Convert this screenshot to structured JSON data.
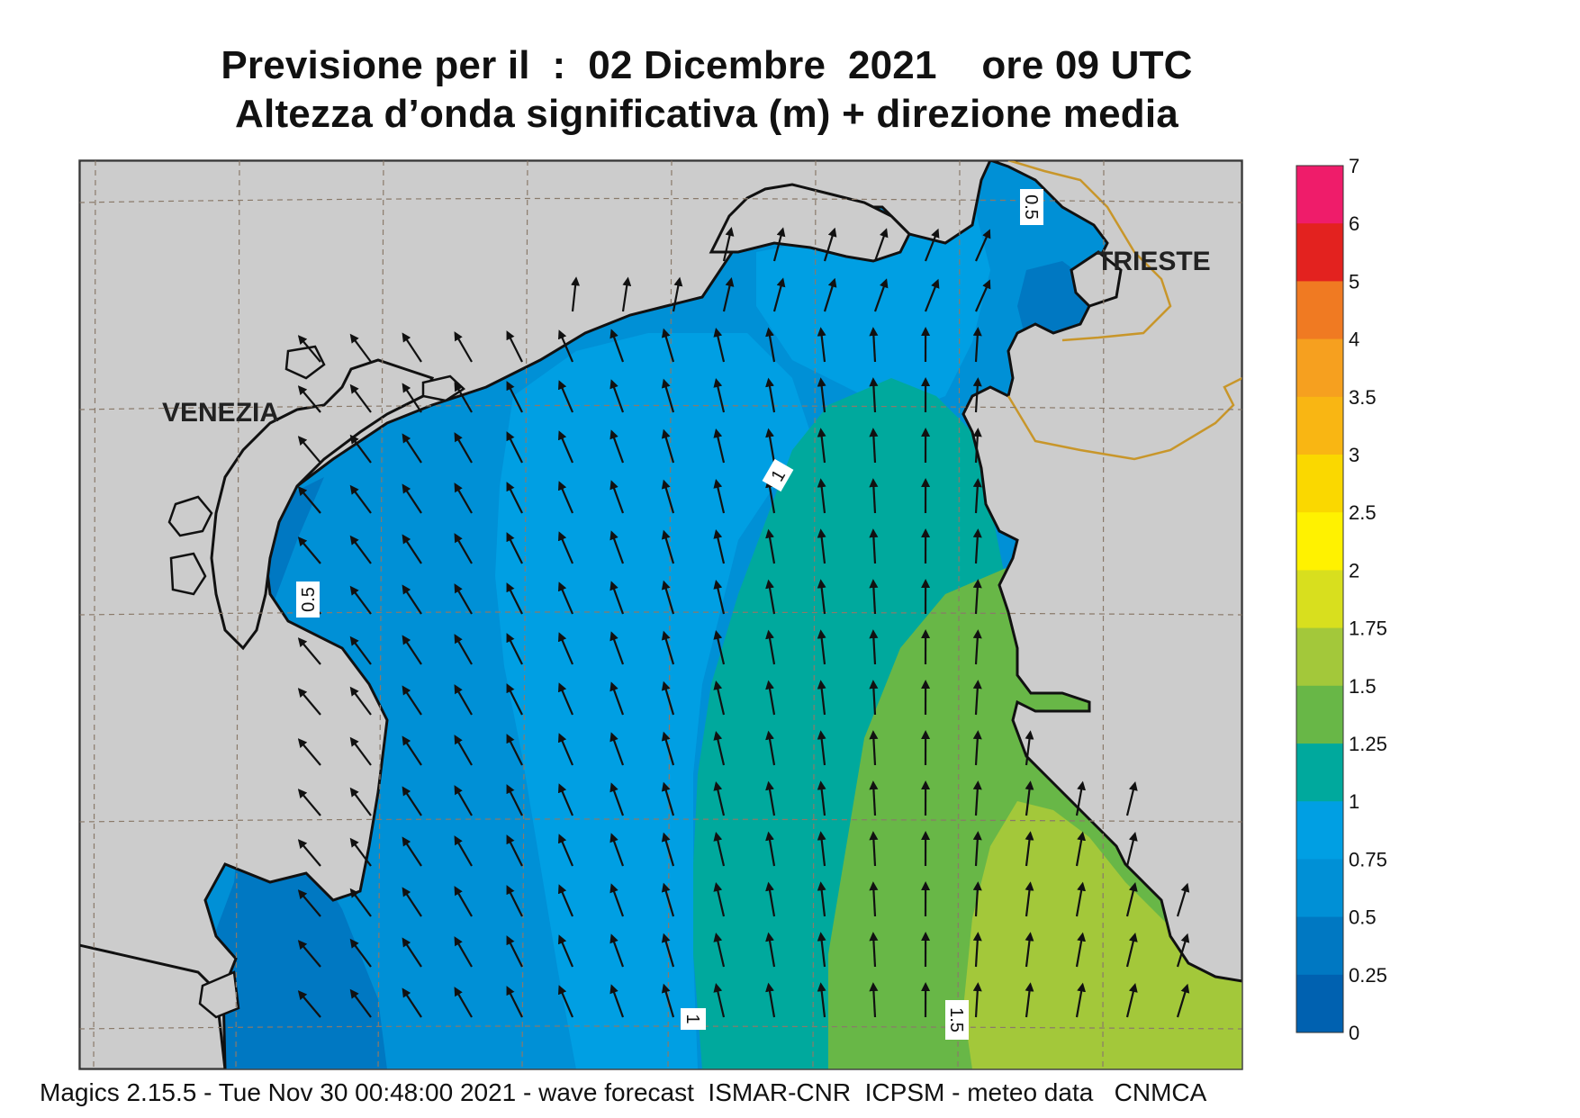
{
  "title": {
    "line1": "Previsione per il  :  02 Dicembre  2021    ore 09 UTC",
    "line2": "Altezza d’onda significativa (m) + direzione media"
  },
  "footer": "Magics 2.15.5 - Tue Nov 30 00:48:00 2021 - wave forecast  ISMAR-CNR  ICPSM - meteo data   CNMCA",
  "cities": {
    "venezia": "VENEZIA",
    "trieste": "TRIESTE"
  },
  "contour_labels": [
    "0.5",
    "0.5",
    "1",
    "1",
    "1.5"
  ],
  "colorbar": {
    "labels": [
      "7",
      "6",
      "5",
      "4",
      "3.5",
      "3",
      "2.5",
      "2",
      "1.75",
      "1.5",
      "1.25",
      "1",
      "0.75",
      "0.5",
      "0.25",
      "0"
    ],
    "colors": [
      "#ef1c6a",
      "#e3221f",
      "#f07a22",
      "#f6a01f",
      "#f9b613",
      "#fad800",
      "#fff200",
      "#d8df1e",
      "#a3c83a",
      "#68b747",
      "#00a99d",
      "#009fe3",
      "#0090d6",
      "#0078c2",
      "#0061b0"
    ]
  },
  "map": {
    "land_color": "#cccccc",
    "border_color": "#c8962a",
    "arrow_color": "#111111"
  }
}
